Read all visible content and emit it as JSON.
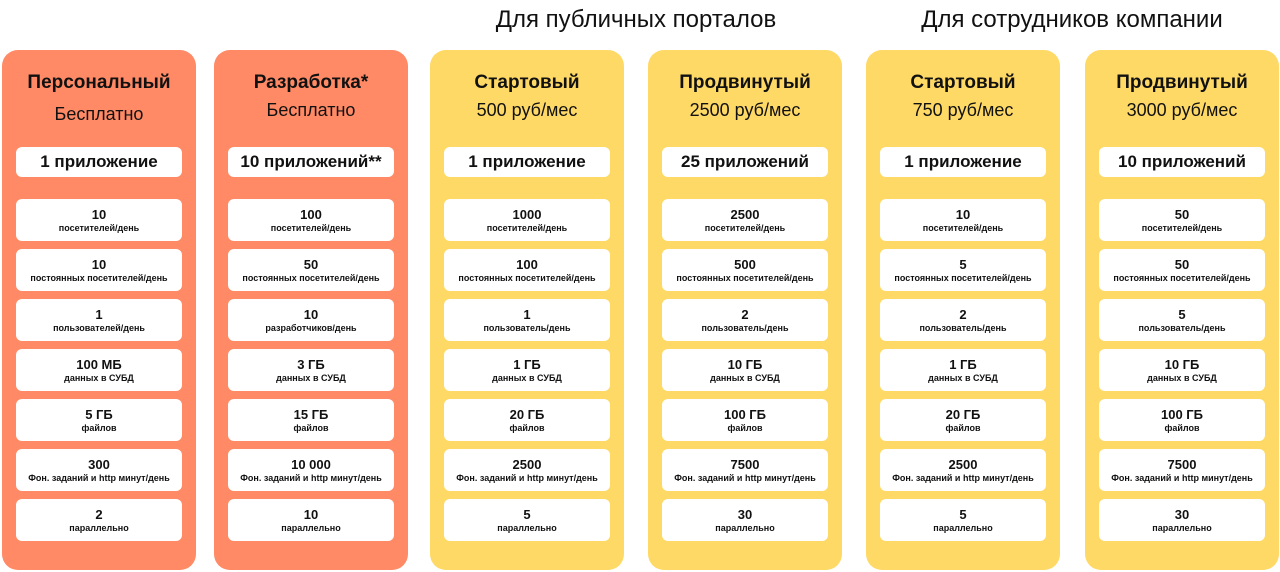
{
  "groups": [
    {
      "title": "Для публичных порталов"
    },
    {
      "title": "Для сотрудников компании"
    }
  ],
  "colors": {
    "orange": "#ff8a65",
    "yellow": "#ffd966"
  },
  "plans": [
    {
      "name": "Персональный",
      "price": "Бесплатно",
      "apps": "1 приложение",
      "color": "orange",
      "metrics": [
        {
          "value": "10",
          "label": "посетителей/день"
        },
        {
          "value": "10",
          "label": "постоянных посетителей/день"
        },
        {
          "value": "1",
          "label": "пользователей/день"
        },
        {
          "value": "100 МБ",
          "label": "данных в СУБД"
        },
        {
          "value": "5 ГБ",
          "label": "файлов"
        },
        {
          "value": "300",
          "label": "Фон. заданий и http минут/день"
        },
        {
          "value": "2",
          "label": "параллельно"
        }
      ]
    },
    {
      "name": "Разработка*",
      "price": "Бесплатно",
      "apps": "10 приложений**",
      "color": "orange",
      "metrics": [
        {
          "value": "100",
          "label": "посетителей/день"
        },
        {
          "value": "50",
          "label": "постоянных посетителей/день"
        },
        {
          "value": "10",
          "label": "разработчиков/день"
        },
        {
          "value": "3 ГБ",
          "label": "данных в СУБД"
        },
        {
          "value": "15 ГБ",
          "label": "файлов"
        },
        {
          "value": "10 000",
          "label": "Фон. заданий и http минут/день"
        },
        {
          "value": "10",
          "label": "параллельно"
        }
      ]
    },
    {
      "name": "Стартовый",
      "price": "500 руб/мес",
      "apps": "1 приложение",
      "color": "yellow",
      "metrics": [
        {
          "value": "1000",
          "label": "посетителей/день"
        },
        {
          "value": "100",
          "label": "постоянных посетителей/день"
        },
        {
          "value": "1",
          "label": "пользователь/день"
        },
        {
          "value": "1 ГБ",
          "label": "данных в СУБД"
        },
        {
          "value": "20 ГБ",
          "label": "файлов"
        },
        {
          "value": "2500",
          "label": "Фон. заданий и http минут/день"
        },
        {
          "value": "5",
          "label": "параллельно"
        }
      ]
    },
    {
      "name": "Продвинутый",
      "price": "2500 руб/мес",
      "apps": "25 приложений",
      "color": "yellow",
      "metrics": [
        {
          "value": "2500",
          "label": "посетителей/день"
        },
        {
          "value": "500",
          "label": "постоянных посетителей/день"
        },
        {
          "value": "2",
          "label": "пользователь/день"
        },
        {
          "value": "10 ГБ",
          "label": "данных в СУБД"
        },
        {
          "value": "100 ГБ",
          "label": "файлов"
        },
        {
          "value": "7500",
          "label": "Фон. заданий и http минут/день"
        },
        {
          "value": "30",
          "label": "параллельно"
        }
      ]
    },
    {
      "name": "Стартовый",
      "price": "750 руб/мес",
      "apps": "1 приложение",
      "color": "yellow",
      "metrics": [
        {
          "value": "10",
          "label": "посетителей/день"
        },
        {
          "value": "5",
          "label": "постоянных посетителей/день"
        },
        {
          "value": "2",
          "label": "пользователь/день"
        },
        {
          "value": "1 ГБ",
          "label": "данных в СУБД"
        },
        {
          "value": "20 ГБ",
          "label": "файлов"
        },
        {
          "value": "2500",
          "label": "Фон. заданий и http минут/день"
        },
        {
          "value": "5",
          "label": "параллельно"
        }
      ]
    },
    {
      "name": "Продвинутый",
      "price": "3000 руб/мес",
      "apps": "10 приложений",
      "color": "yellow",
      "metrics": [
        {
          "value": "50",
          "label": "посетителей/день"
        },
        {
          "value": "50",
          "label": "постоянных посетителей/день"
        },
        {
          "value": "5",
          "label": "пользователь/день"
        },
        {
          "value": "10 ГБ",
          "label": "данных в СУБД"
        },
        {
          "value": "100 ГБ",
          "label": "файлов"
        },
        {
          "value": "7500",
          "label": "Фон. заданий и http минут/день"
        },
        {
          "value": "30",
          "label": "параллельно"
        }
      ]
    }
  ]
}
